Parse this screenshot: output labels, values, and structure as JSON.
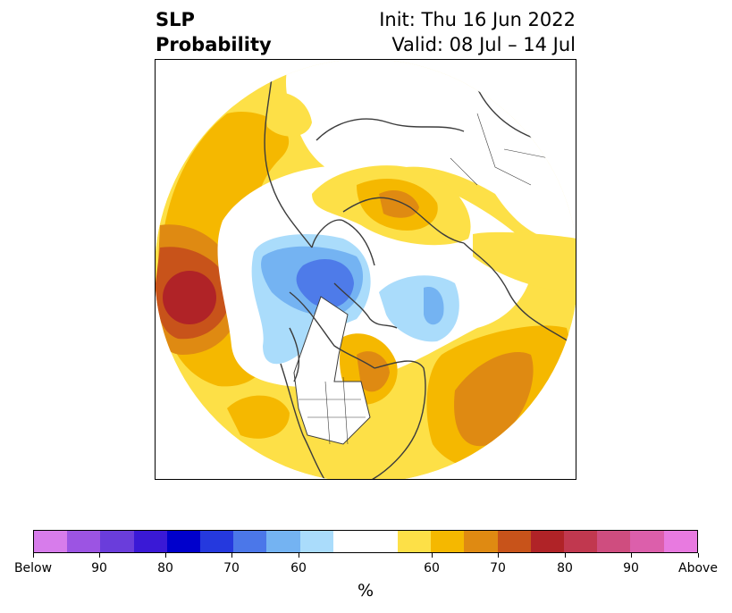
{
  "header": {
    "title_line1": "SLP",
    "title_line2": "Probability",
    "init": "Init: Thu 16 Jun 2022",
    "valid": "Valid: 08 Jul – 14 Jul"
  },
  "map": {
    "projection": "north-polar-stereographic",
    "colors": {
      "yellow": "#fde047",
      "gold": "#f5b800",
      "orange": "#df8a12",
      "dark_orange": "#c8531a",
      "red": "#b02327",
      "pale_blue": "#aadcfb",
      "light_blue": "#74b3f2",
      "blue": "#4e7be9",
      "coast": "#3c3c3c",
      "land": "#ffffff"
    }
  },
  "colorbar": {
    "unit": "%",
    "colors": [
      "#d77ceb",
      "#9c54e3",
      "#6a3ddb",
      "#3a19d6",
      "#0000cc",
      "#2539de",
      "#4b77e9",
      "#74b3f2",
      "#aadcfb",
      "#ffffff",
      "#fde047",
      "#f5b800",
      "#df8a12",
      "#c8531a",
      "#b02327",
      "#c1384f",
      "#cf4d7f",
      "#dc5fab",
      "#e87ae0"
    ],
    "tick_labels": [
      "Below",
      "90",
      "80",
      "70",
      "60",
      "60",
      "70",
      "80",
      "90",
      "Above"
    ]
  }
}
